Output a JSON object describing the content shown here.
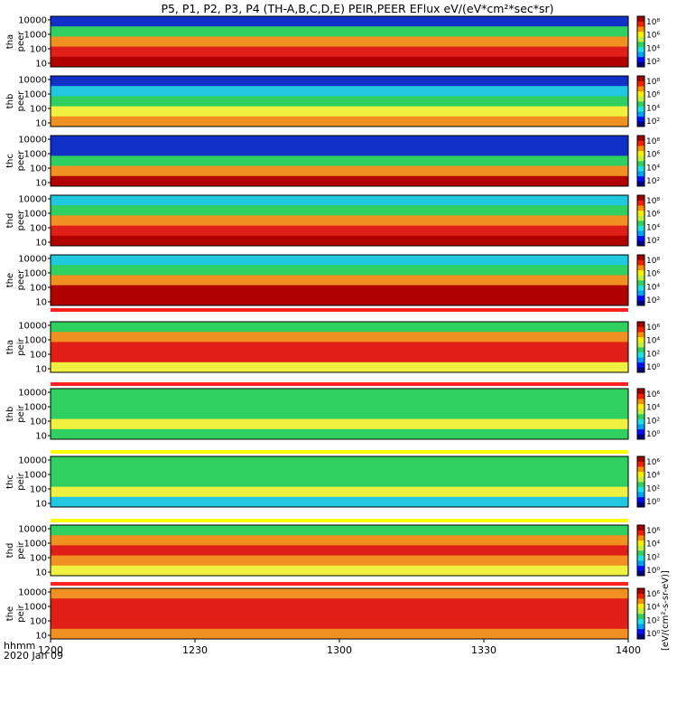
{
  "title": "P5, P1, P2, P3, P4 (TH-A,B,C,D,E) PEIR,PEER EFlux eV/(eV*cm²*sec*sr)",
  "x_axis": {
    "label_line1": "hhmm",
    "label_line2": "2020 Jan 09"
  },
  "colorbar_unit_text": "[eV/(cm²-s-sr-eV)]",
  "colors": {
    "cold": "#1030c8",
    "cool": "#20c8e0",
    "green": "#30d060",
    "yellow": "#f0f040",
    "orange": "#f09020",
    "red": "#e02018",
    "dark_red": "#b00000",
    "separator_red": "#ff2020",
    "separator_yellow": "#ffff00"
  },
  "chart_data": {
    "type": "heatmap",
    "x_ticks": [
      "1200",
      "1230",
      "1300",
      "1330",
      "1400"
    ],
    "x_range": [
      1200,
      1400
    ],
    "y_scale": "log",
    "y_ticks": [
      "10",
      "100",
      "1000",
      "10000"
    ],
    "colorbar_ticks_upper": [
      "10⁸",
      "10⁶",
      "10⁴",
      "10²"
    ],
    "colorbar_ticks_lower": [
      "10⁶",
      "10⁴",
      "10²",
      "10⁰"
    ],
    "panels": [
      {
        "label_top": "tha",
        "label_bottom": "peer",
        "colorbar": "upper",
        "profile": [
          [
            "cold",
            1200,
            1400
          ],
          [
            "green",
            1200,
            1400
          ],
          [
            "orange",
            1200,
            1400
          ],
          [
            "red",
            1200,
            1400
          ],
          [
            "dark_red",
            1200,
            1400
          ]
        ]
      },
      {
        "label_top": "thb",
        "label_bottom": "peer",
        "colorbar": "upper",
        "profile": [
          [
            "cold",
            1200,
            1400
          ],
          [
            "cool",
            1200,
            1400
          ],
          [
            "green",
            1200,
            1400
          ],
          [
            "yellow",
            1200,
            1400
          ],
          [
            "orange",
            1200,
            1400
          ]
        ]
      },
      {
        "label_top": "thc",
        "label_bottom": "peer",
        "colorbar": "upper",
        "profile": [
          [
            "cold",
            1200,
            1400
          ],
          [
            "cold",
            1200,
            1400
          ],
          [
            "green",
            1200,
            1400
          ],
          [
            "orange",
            1200,
            1400
          ],
          [
            "dark_red",
            1200,
            1400
          ]
        ]
      },
      {
        "label_top": "thd",
        "label_bottom": "peer",
        "colorbar": "upper",
        "profile": [
          [
            "cool",
            1200,
            1400
          ],
          [
            "green",
            1200,
            1400
          ],
          [
            "orange",
            1200,
            1400
          ],
          [
            "red",
            1200,
            1400
          ],
          [
            "dark_red",
            1200,
            1400
          ]
        ]
      },
      {
        "label_top": "the",
        "label_bottom": "peer",
        "colorbar": "upper",
        "profile": [
          [
            "cool",
            1200,
            1400
          ],
          [
            "green",
            1200,
            1400
          ],
          [
            "orange",
            1200,
            1400
          ],
          [
            "dark_red",
            1200,
            1400
          ],
          [
            "dark_red",
            1200,
            1400
          ]
        ]
      },
      {
        "label_top": "tha",
        "label_bottom": "peir",
        "colorbar": "lower",
        "profile": [
          [
            "green",
            1200,
            1400
          ],
          [
            "orange",
            1200,
            1400
          ],
          [
            "red",
            1200,
            1400
          ],
          [
            "red",
            1200,
            1400
          ],
          [
            "yellow",
            1200,
            1400
          ]
        ]
      },
      {
        "label_top": "thb",
        "label_bottom": "peir",
        "colorbar": "lower",
        "profile": [
          [
            "green",
            1200,
            1400
          ],
          [
            "green",
            1200,
            1400
          ],
          [
            "green",
            1200,
            1400
          ],
          [
            "yellow",
            1200,
            1400
          ],
          [
            "green",
            1200,
            1400
          ]
        ]
      },
      {
        "label_top": "thc",
        "label_bottom": "peir",
        "colorbar": "lower",
        "profile": [
          [
            "green",
            1200,
            1400
          ],
          [
            "green",
            1200,
            1400
          ],
          [
            "green",
            1200,
            1400
          ],
          [
            "yellow",
            1200,
            1400
          ],
          [
            "cool",
            1200,
            1400
          ]
        ]
      },
      {
        "label_top": "thd",
        "label_bottom": "peir",
        "colorbar": "lower",
        "profile": [
          [
            "green",
            1200,
            1400
          ],
          [
            "orange",
            1200,
            1400
          ],
          [
            "red",
            1200,
            1400
          ],
          [
            "orange",
            1200,
            1400
          ],
          [
            "yellow",
            1200,
            1400
          ]
        ]
      },
      {
        "label_top": "the",
        "label_bottom": "peir",
        "colorbar": "lower",
        "profile": [
          [
            "orange",
            1200,
            1400
          ],
          [
            "red",
            1200,
            1400
          ],
          [
            "red",
            1200,
            1400
          ],
          [
            "red",
            1200,
            1400
          ],
          [
            "orange",
            1200,
            1400
          ]
        ]
      }
    ]
  }
}
